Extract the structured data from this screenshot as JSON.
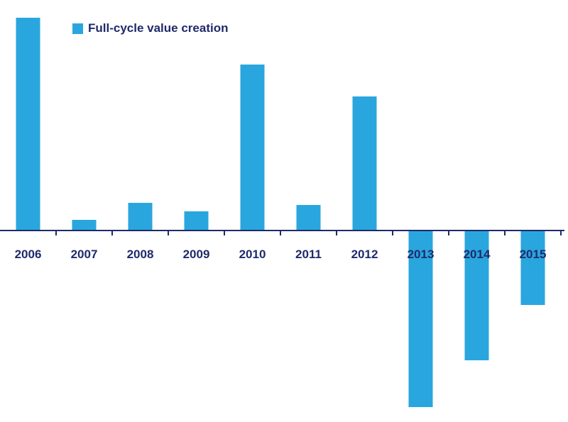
{
  "colors": {
    "bar": "#29a6de",
    "axis": "#1f2a6b",
    "label": "#1f2a6b"
  },
  "legend": {
    "label": "Full-cycle value creation"
  },
  "chart_data": {
    "type": "bar",
    "categories": [
      "2006",
      "2007",
      "2008",
      "2009",
      "2010",
      "2011",
      "2012",
      "2013",
      "2014",
      "2015"
    ],
    "series": [
      {
        "name": "Full-cycle value creation",
        "values": [
          100,
          5,
          13,
          9,
          78,
          12,
          63,
          -83,
          -61,
          -35
        ]
      }
    ],
    "ylim": [
      -84,
      100
    ],
    "grid": false,
    "legend_position": "top-left",
    "y_axis_labels": false
  }
}
